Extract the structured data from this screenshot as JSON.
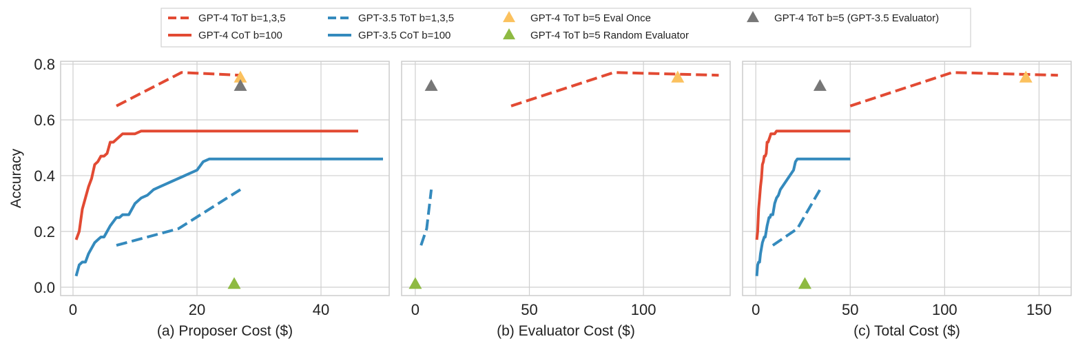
{
  "chart_data": {
    "type": "line",
    "ylabel": "Accuracy",
    "ylim": [
      -0.03,
      0.81
    ],
    "yticks": [
      0.0,
      0.2,
      0.4,
      0.6,
      0.8
    ],
    "ytick_labels": [
      "0.0",
      "0.2",
      "0.4",
      "0.6",
      "0.8"
    ],
    "grid": true,
    "legend_position": "top-center",
    "legend": [
      {
        "label": "GPT-4 ToT b=1,3,5",
        "kind": "dashed-line",
        "color": "#e24a33"
      },
      {
        "label": "GPT-4 CoT b=100",
        "kind": "solid-line",
        "color": "#e24a33"
      },
      {
        "label": "GPT-3.5 ToT b=1,3,5",
        "kind": "dashed-line",
        "color": "#348abd"
      },
      {
        "label": "GPT-3.5 CoT b=100",
        "kind": "solid-line",
        "color": "#348abd"
      },
      {
        "label": "GPT-4 ToT b=5 Eval Once",
        "kind": "triangle",
        "color": "#fbc15e"
      },
      {
        "label": "GPT-4 ToT b=5 Random Evaluator",
        "kind": "triangle",
        "color": "#8eba42"
      },
      {
        "label": "GPT-4 ToT b=5 (GPT-3.5 Evaluator)",
        "kind": "triangle",
        "color": "#777777"
      }
    ],
    "panels": [
      {
        "xlabel": "(a) Proposer Cost ($)",
        "xlim": [
          -2,
          51
        ],
        "xticks": [
          0,
          20,
          40
        ],
        "xtick_labels": [
          "0",
          "20",
          "40"
        ],
        "series": [
          {
            "name": "GPT-4 ToT b=1,3,5",
            "style": "dashed",
            "color": "#e24a33",
            "x": [
              7,
              17.5,
              27
            ],
            "y": [
              0.65,
              0.77,
              0.76
            ]
          },
          {
            "name": "GPT-3.5 ToT b=1,3,5",
            "style": "dashed",
            "color": "#348abd",
            "x": [
              7,
              17,
              27
            ],
            "y": [
              0.15,
              0.21,
              0.35
            ]
          },
          {
            "name": "GPT-4 CoT b=100",
            "style": "solid",
            "color": "#e24a33",
            "x": [
              0.5,
              1.0,
              1.5,
              2.0,
              2.5,
              3.0,
              3.5,
              4.0,
              4.5,
              5.0,
              5.5,
              6.0,
              6.5,
              7.0,
              7.5,
              8.0,
              9.0,
              10.0,
              11.0,
              15.0,
              25.0,
              35.0,
              46.0
            ],
            "y": [
              0.17,
              0.2,
              0.28,
              0.32,
              0.36,
              0.39,
              0.44,
              0.45,
              0.47,
              0.47,
              0.48,
              0.52,
              0.52,
              0.53,
              0.54,
              0.55,
              0.55,
              0.55,
              0.56,
              0.56,
              0.56,
              0.56,
              0.56
            ]
          },
          {
            "name": "GPT-3.5 CoT b=100",
            "style": "solid",
            "color": "#348abd",
            "x": [
              0.5,
              1.0,
              1.5,
              2.0,
              2.5,
              3.0,
              3.5,
              4.0,
              4.5,
              5.0,
              6.0,
              7.0,
              7.5,
              8.0,
              8.5,
              9.0,
              10.0,
              11.0,
              12.0,
              13.0,
              14.0,
              15.0,
              16.0,
              17.0,
              18.0,
              19.0,
              20.0,
              21.0,
              22.0,
              24.0,
              30.0,
              40.0,
              50.0
            ],
            "y": [
              0.04,
              0.08,
              0.09,
              0.09,
              0.12,
              0.14,
              0.16,
              0.17,
              0.18,
              0.18,
              0.22,
              0.25,
              0.25,
              0.26,
              0.26,
              0.26,
              0.3,
              0.32,
              0.33,
              0.35,
              0.36,
              0.37,
              0.38,
              0.39,
              0.4,
              0.41,
              0.42,
              0.45,
              0.46,
              0.46,
              0.46,
              0.46,
              0.46
            ]
          }
        ],
        "points": [
          {
            "name": "GPT-4 ToT b=5 Eval Once",
            "color": "#fbc15e",
            "x": 27,
            "y": 0.75
          },
          {
            "name": "GPT-4 ToT b=5 (GPT-3.5 Evaluator)",
            "color": "#777777",
            "x": 27,
            "y": 0.72
          },
          {
            "name": "GPT-4 ToT b=5 Random Evaluator",
            "color": "#8eba42",
            "x": 26,
            "y": 0.01
          }
        ]
      },
      {
        "xlabel": "(b) Evaluator Cost ($)",
        "xlim": [
          -6,
          138
        ],
        "xticks": [
          0,
          50,
          100
        ],
        "xtick_labels": [
          "0",
          "50",
          "100"
        ],
        "series": [
          {
            "name": "GPT-4 ToT b=1,3,5",
            "style": "dashed",
            "color": "#e24a33",
            "x": [
              42,
              87,
              133
            ],
            "y": [
              0.65,
              0.77,
              0.76
            ]
          },
          {
            "name": "GPT-3.5 ToT b=1,3,5",
            "style": "dashed",
            "color": "#348abd",
            "x": [
              2.5,
              5.0,
              7.0
            ],
            "y": [
              0.15,
              0.21,
              0.35
            ]
          }
        ],
        "points": [
          {
            "name": "GPT-4 ToT b=5 Eval Once",
            "color": "#fbc15e",
            "x": 115,
            "y": 0.75
          },
          {
            "name": "GPT-4 ToT b=5 (GPT-3.5 Evaluator)",
            "color": "#777777",
            "x": 7,
            "y": 0.72
          },
          {
            "name": "GPT-4 ToT b=5 Random Evaluator",
            "color": "#8eba42",
            "x": 0,
            "y": 0.01
          }
        ]
      },
      {
        "xlabel": "(c) Total Cost ($)",
        "xlim": [
          -7,
          167
        ],
        "xticks": [
          0,
          50,
          100,
          150
        ],
        "xtick_labels": [
          "0",
          "50",
          "100",
          "150"
        ],
        "series": [
          {
            "name": "GPT-4 ToT b=1,3,5",
            "style": "dashed",
            "color": "#e24a33",
            "x": [
              50,
              104,
              160
            ],
            "y": [
              0.65,
              0.77,
              0.76
            ]
          },
          {
            "name": "GPT-3.5 ToT b=1,3,5",
            "style": "dashed",
            "color": "#348abd",
            "x": [
              9,
              22,
              34
            ],
            "y": [
              0.15,
              0.21,
              0.35
            ]
          },
          {
            "name": "GPT-4 CoT b=100",
            "style": "solid",
            "color": "#e24a33",
            "x": [
              0.5,
              1.0,
              1.5,
              2.0,
              2.5,
              3.0,
              3.5,
              4.0,
              4.5,
              5.0,
              5.5,
              6.0,
              6.5,
              7.0,
              7.5,
              8.0,
              9.0,
              10.0,
              11.0,
              15.0,
              25.0,
              35.0,
              50.0
            ],
            "y": [
              0.17,
              0.2,
              0.28,
              0.32,
              0.36,
              0.39,
              0.44,
              0.45,
              0.47,
              0.47,
              0.48,
              0.52,
              0.52,
              0.53,
              0.54,
              0.55,
              0.55,
              0.55,
              0.56,
              0.56,
              0.56,
              0.56,
              0.56
            ]
          },
          {
            "name": "GPT-3.5 CoT b=100",
            "style": "solid",
            "color": "#348abd",
            "x": [
              0.5,
              1.0,
              1.5,
              2.0,
              2.5,
              3.0,
              3.5,
              4.0,
              4.5,
              5.0,
              6.0,
              7.0,
              7.5,
              8.0,
              8.5,
              9.0,
              10.0,
              11.0,
              12.0,
              13.0,
              14.0,
              15.0,
              16.0,
              17.0,
              18.0,
              19.0,
              20.0,
              21.0,
              22.0,
              24.0,
              30.0,
              40.0,
              50.0
            ],
            "y": [
              0.04,
              0.08,
              0.09,
              0.09,
              0.12,
              0.14,
              0.16,
              0.17,
              0.18,
              0.18,
              0.22,
              0.25,
              0.25,
              0.26,
              0.26,
              0.26,
              0.3,
              0.32,
              0.33,
              0.35,
              0.36,
              0.37,
              0.38,
              0.39,
              0.4,
              0.41,
              0.42,
              0.45,
              0.46,
              0.46,
              0.46,
              0.46,
              0.46
            ]
          }
        ],
        "points": [
          {
            "name": "GPT-4 ToT b=5 Eval Once",
            "color": "#fbc15e",
            "x": 143,
            "y": 0.75
          },
          {
            "name": "GPT-4 ToT b=5 (GPT-3.5 Evaluator)",
            "color": "#777777",
            "x": 34,
            "y": 0.72
          },
          {
            "name": "GPT-4 ToT b=5 Random Evaluator",
            "color": "#8eba42",
            "x": 26,
            "y": 0.01
          }
        ]
      }
    ]
  }
}
